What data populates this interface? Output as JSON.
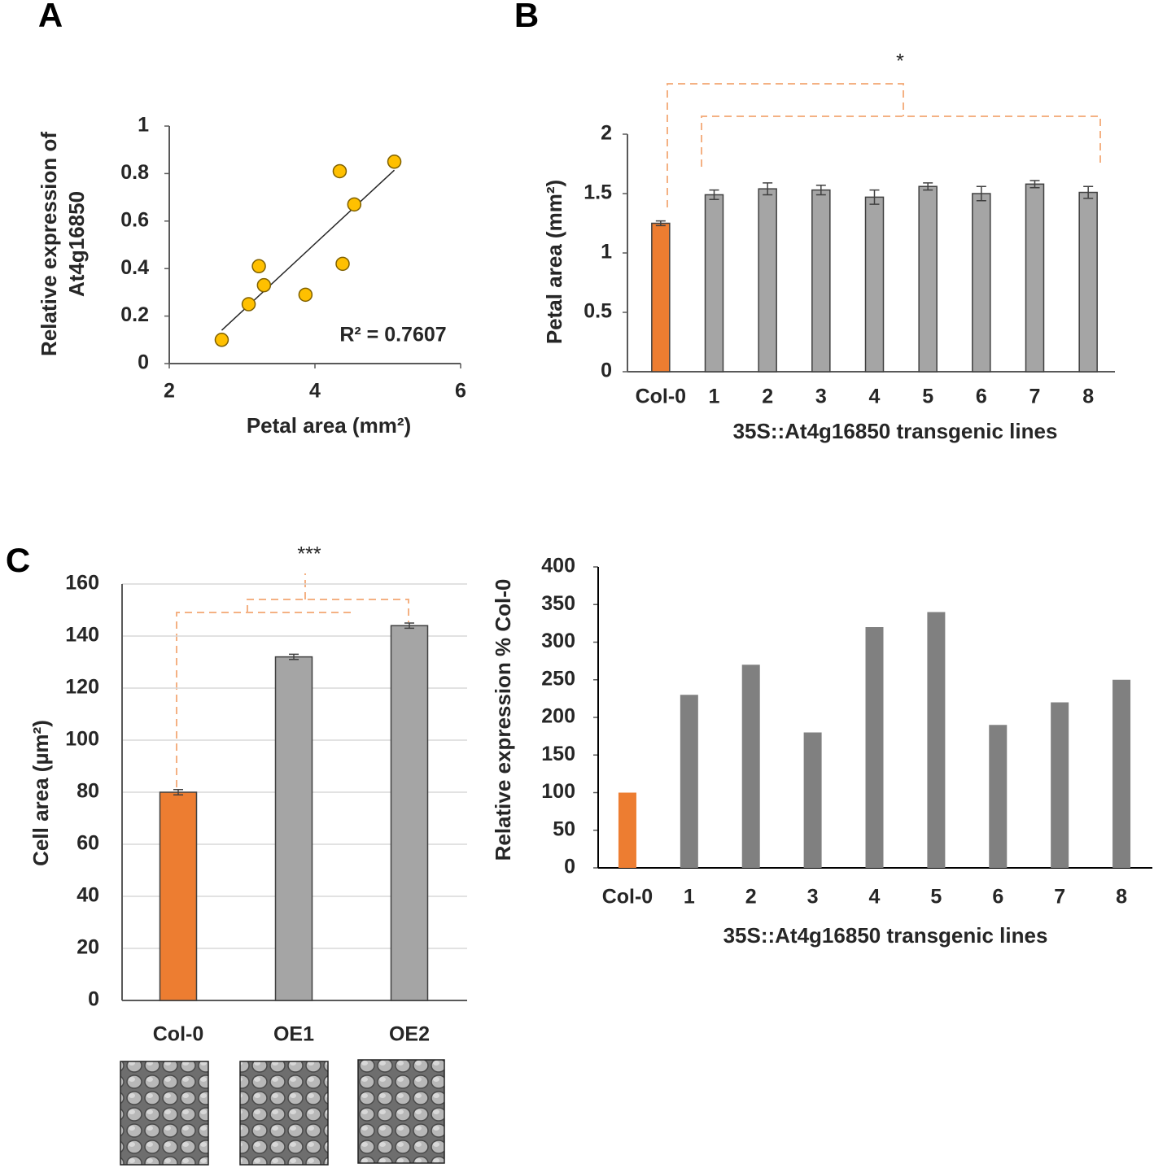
{
  "chart_data": [
    {
      "panel": "A",
      "type": "scatter",
      "xlabel": "Petal area (mm²)",
      "ylabel": [
        "Relative expression of",
        "At4g16850"
      ],
      "x": [
        2.72,
        3.09,
        3.23,
        3.3,
        3.87,
        4.34,
        4.38,
        4.54,
        5.09
      ],
      "values": [
        0.1,
        0.25,
        0.41,
        0.33,
        0.29,
        0.81,
        0.42,
        0.67,
        0.85
      ],
      "color": "#ffc000",
      "trendline": true,
      "annotation": "R² = 0.7607",
      "xlim": [
        2,
        6
      ],
      "xticks": [
        2,
        4,
        6
      ],
      "ylim": [
        0,
        1
      ],
      "yticks": [
        0,
        0.2,
        0.4,
        0.6,
        0.8,
        1
      ],
      "grid": false
    },
    {
      "panel": "B",
      "type": "bar",
      "xlabel": "35S::At4g16850 transgenic lines",
      "ylabel": [
        "Petal area (mm²)"
      ],
      "categories": [
        "Col-0",
        "1",
        "2",
        "3",
        "4",
        "5",
        "6",
        "7",
        "8"
      ],
      "values": [
        1.25,
        1.49,
        1.54,
        1.53,
        1.47,
        1.56,
        1.5,
        1.58,
        1.51
      ],
      "errors": [
        0.02,
        0.04,
        0.05,
        0.04,
        0.06,
        0.03,
        0.06,
        0.03,
        0.05
      ],
      "colors": [
        "#ed7d31",
        "#a5a5a5",
        "#a5a5a5",
        "#a5a5a5",
        "#a5a5a5",
        "#a5a5a5",
        "#a5a5a5",
        "#a5a5a5",
        "#a5a5a5"
      ],
      "annotation": "*",
      "ylim": [
        0,
        2
      ],
      "yticks": [
        0,
        0.5,
        1,
        1.5,
        2
      ],
      "grid": false
    },
    {
      "panel": "C",
      "type": "bar",
      "ylabel": [
        "Cell area (µm²)"
      ],
      "categories": [
        "Col-0",
        "OE1",
        "OE2"
      ],
      "values": [
        80,
        132,
        144
      ],
      "errors": [
        1,
        1,
        1
      ],
      "colors": [
        "#ed7d31",
        "#a5a5a5",
        "#a5a5a5"
      ],
      "annotation": "***",
      "ylim": [
        0,
        160
      ],
      "yticks": [
        0,
        20,
        40,
        60,
        80,
        100,
        120,
        140,
        160
      ],
      "grid": true
    },
    {
      "type": "bar",
      "xlabel": "35S::At4g16850 transgenic lines",
      "ylabel": [
        "Relative expression % Col-0"
      ],
      "categories": [
        "Col-0",
        "1",
        "2",
        "3",
        "4",
        "5",
        "6",
        "7",
        "8"
      ],
      "values": [
        100,
        230,
        270,
        180,
        320,
        340,
        190,
        220,
        250
      ],
      "colors": [
        "#ed7d31",
        "#808080",
        "#808080",
        "#808080",
        "#808080",
        "#808080",
        "#808080",
        "#808080",
        "#808080"
      ],
      "ylim": [
        0,
        400
      ],
      "yticks": [
        0,
        50,
        100,
        150,
        200,
        250,
        300,
        350,
        400
      ],
      "grid": false
    }
  ]
}
